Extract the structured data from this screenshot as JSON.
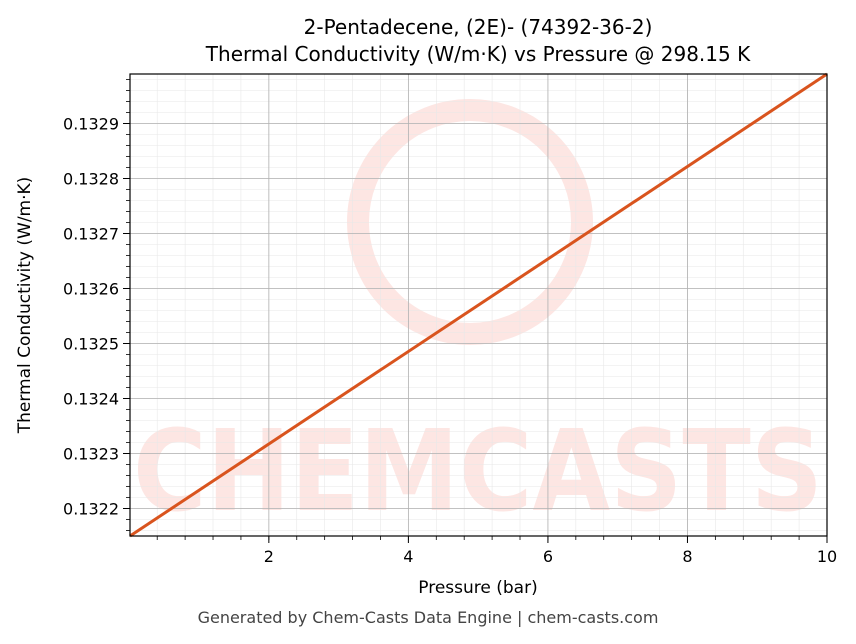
{
  "chart_data": {
    "type": "line",
    "title": "2-Pentadecene, (2E)- (74392-36-2)",
    "subtitle": "Thermal Conductivity (W/m·K) vs Pressure @ 298.15 K",
    "xlabel": "Pressure (bar)",
    "ylabel": "Thermal Conductivity (W/m·K)",
    "xlim": [
      0.01,
      10
    ],
    "ylim": [
      0.13215,
      0.13299
    ],
    "xticks": [
      2,
      4,
      6,
      8,
      10
    ],
    "yticks": [
      0.1322,
      0.1323,
      0.1324,
      0.1325,
      0.1326,
      0.1327,
      0.1328,
      0.1329
    ],
    "grid": true,
    "series": [
      {
        "x": [
          0.01,
          10
        ],
        "y": [
          0.13215,
          0.13299
        ],
        "color": "#d9541e"
      }
    ]
  },
  "watermark": {
    "text": "CHEMCASTS",
    "color": "#fde6e3"
  },
  "footer": "Generated by Chem-Casts Data Engine | chem-casts.com"
}
